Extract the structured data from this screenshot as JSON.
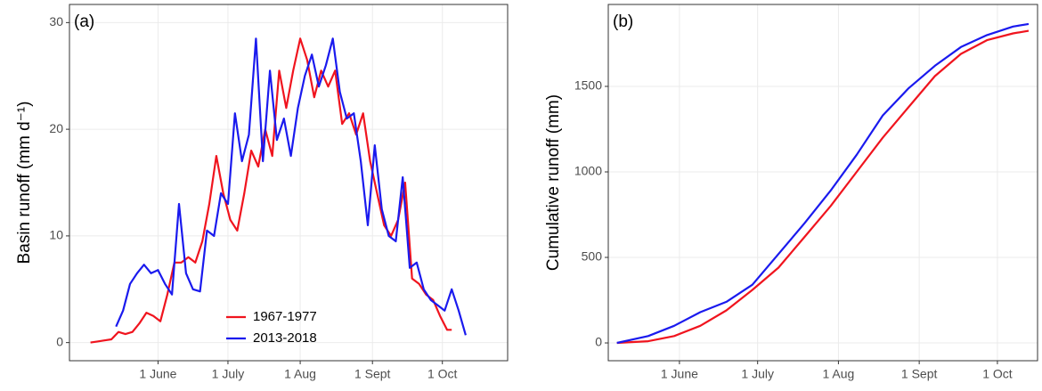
{
  "chart_data": [
    {
      "type": "line",
      "annotation": "(a)",
      "y_label": "Basin runoff (mm d⁻¹)",
      "xlim": [
        114,
        302
      ],
      "xticks": [
        {
          "value": 152,
          "label": "1 June"
        },
        {
          "value": 182,
          "label": "1 July"
        },
        {
          "value": 213,
          "label": "1 Aug"
        },
        {
          "value": 244,
          "label": "1 Sept"
        },
        {
          "value": 274,
          "label": "1 Oct"
        }
      ],
      "ylim": [
        -1.7,
        31.7
      ],
      "yticks": [
        0,
        10,
        20,
        30
      ],
      "grid": true,
      "legend": "lower center",
      "series": [
        {
          "name": "1967-1977",
          "color": "#f0141e",
          "x": [
            123,
            126,
            129,
            132,
            135,
            138,
            141,
            144,
            147,
            150,
            153,
            156,
            159,
            162,
            165,
            168,
            171,
            174,
            177,
            180,
            183,
            186,
            189,
            192,
            195,
            198,
            201,
            204,
            207,
            210,
            213,
            216,
            219,
            222,
            225,
            228,
            231,
            234,
            237,
            240,
            243,
            246,
            249,
            252,
            255,
            258,
            261,
            264,
            267,
            270,
            273,
            276,
            278
          ],
          "values": [
            0,
            0.1,
            0.2,
            0.3,
            1.0,
            0.8,
            1.0,
            1.8,
            2.8,
            2.5,
            2.0,
            4.5,
            7.5,
            7.5,
            8.0,
            7.5,
            9.5,
            13,
            17.5,
            14,
            11.5,
            10.5,
            14,
            18,
            16.5,
            20,
            17.5,
            25.5,
            22,
            25.5,
            28.5,
            26.5,
            23,
            25.5,
            24,
            25.5,
            20.5,
            21.5,
            19.5,
            21.5,
            17,
            14,
            11,
            10,
            11.5,
            15,
            6,
            5.5,
            4.5,
            4,
            2.5,
            1.2,
            1.2
          ]
        },
        {
          "name": "2013-2018",
          "color": "#1a1aee",
          "x": [
            134,
            137,
            140,
            143,
            146,
            149,
            152,
            155,
            158,
            161,
            164,
            167,
            170,
            173,
            176,
            179,
            182,
            185,
            188,
            191,
            194,
            197,
            200,
            203,
            206,
            209,
            212,
            215,
            218,
            221,
            224,
            227,
            230,
            233,
            236,
            239,
            242,
            245,
            248,
            251,
            254,
            257,
            260,
            263,
            266,
            269,
            272,
            275,
            278,
            281,
            284
          ],
          "values": [
            1.5,
            3,
            5.5,
            6.5,
            7.3,
            6.5,
            6.8,
            5.5,
            4.5,
            13,
            6.5,
            5,
            4.8,
            10.5,
            10,
            14,
            13,
            21.5,
            17,
            19.5,
            28.5,
            17,
            25.5,
            19,
            21,
            17.5,
            22,
            25,
            27,
            24,
            26,
            28.5,
            23.5,
            21,
            21.5,
            17,
            11,
            18.5,
            12.5,
            10,
            9.5,
            15.5,
            7,
            7.5,
            5,
            4,
            3.5,
            3,
            5,
            3,
            0.7
          ]
        }
      ]
    },
    {
      "type": "line",
      "annotation": "(b)",
      "y_label": "Cumulative runoff (mm)",
      "xlim": [
        124.7,
        289.4
      ],
      "xticks": [
        {
          "value": 152,
          "label": "1 June"
        },
        {
          "value": 182,
          "label": "1 July"
        },
        {
          "value": 213,
          "label": "1 Aug"
        },
        {
          "value": 244,
          "label": "1 Sept"
        },
        {
          "value": 274,
          "label": "1 Oct"
        }
      ],
      "ylim": [
        -104,
        1979
      ],
      "yticks": [
        0,
        500,
        1000,
        1500
      ],
      "grid": true,
      "series": [
        {
          "color": "#f0141e",
          "x": [
            128,
            140,
            150,
            160,
            170,
            180,
            190,
            200,
            210,
            220,
            230,
            240,
            250,
            260,
            270,
            280,
            286
          ],
          "values": [
            0,
            10,
            40,
            100,
            190,
            310,
            440,
            620,
            800,
            1000,
            1200,
            1380,
            1560,
            1690,
            1770,
            1810,
            1825
          ]
        },
        {
          "color": "#1a1aee",
          "x": [
            128,
            140,
            150,
            160,
            170,
            180,
            190,
            200,
            210,
            220,
            230,
            240,
            250,
            260,
            270,
            280,
            286
          ],
          "values": [
            0,
            40,
            100,
            180,
            240,
            340,
            520,
            700,
            890,
            1100,
            1330,
            1490,
            1620,
            1730,
            1800,
            1850,
            1865
          ]
        }
      ]
    }
  ]
}
